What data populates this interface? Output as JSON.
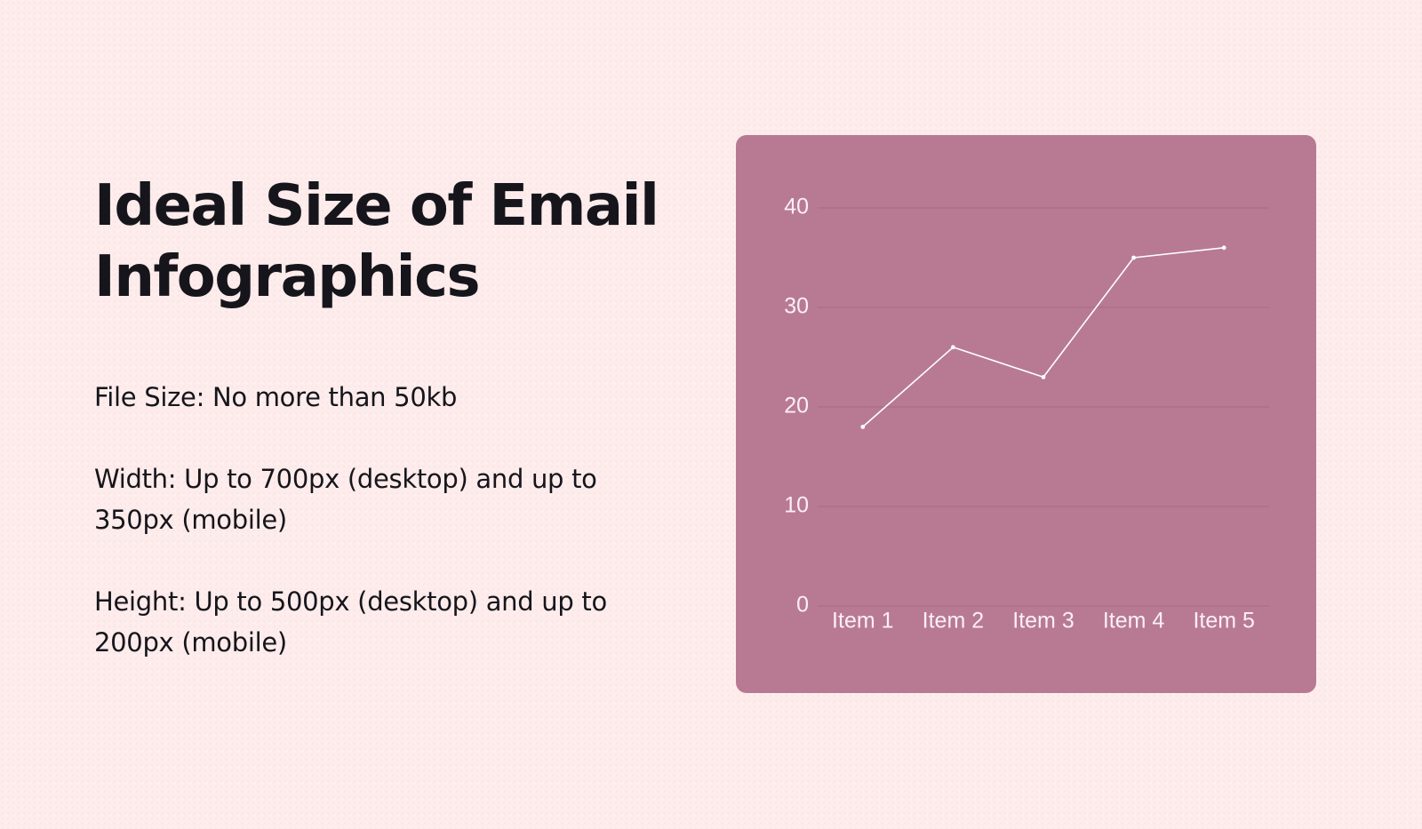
{
  "title": "Ideal Size of Email Infographics",
  "specs": [
    "File Size: No more than 50kb",
    "Width: Up to 700px (desktop) and up to 350px (mobile)",
    "Height: Up to 500px (desktop) and up to 200px (mobile)"
  ],
  "colors": {
    "background": "#fdeceb",
    "card": "#b87a93",
    "line": "#ffffff",
    "text": "#16151c"
  },
  "chart_data": {
    "type": "line",
    "categories": [
      "Item 1",
      "Item 2",
      "Item 3",
      "Item 4",
      "Item 5"
    ],
    "values": [
      18,
      26,
      23,
      35,
      36
    ],
    "y_ticks": [
      0,
      10,
      20,
      30,
      40
    ],
    "ylim": [
      0,
      40
    ],
    "grid": true,
    "legend": "none"
  }
}
